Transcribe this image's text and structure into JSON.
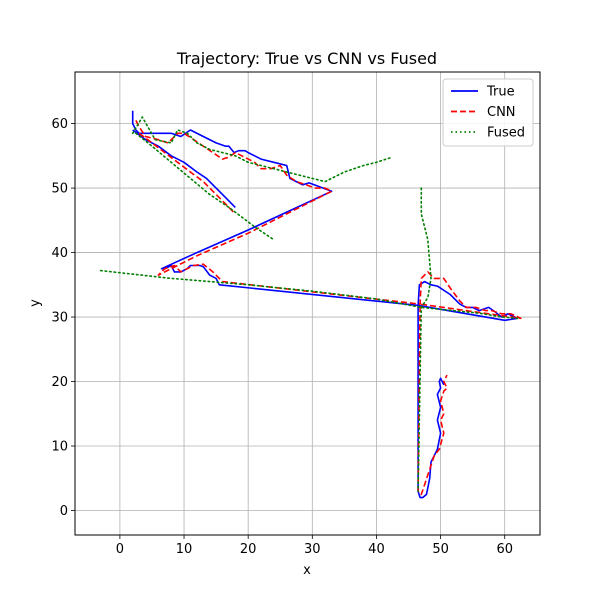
{
  "chart_data": {
    "type": "line",
    "title": "Trajectory: True vs CNN vs Fused",
    "xlabel": "x",
    "ylabel": "y",
    "xlim": [
      -7.0,
      65.5
    ],
    "ylim": [
      -3.8,
      68.0
    ],
    "xticks": [
      0,
      10,
      20,
      30,
      40,
      50,
      60
    ],
    "yticks": [
      0,
      10,
      20,
      30,
      40,
      50,
      60
    ],
    "grid": true,
    "legend_position": "top-right",
    "series": [
      {
        "name": "True",
        "color": "#0000ff",
        "style": "solid",
        "x": [
          2.0,
          2.0,
          2.5,
          3.0,
          5.0,
          8.0,
          9.5,
          11.0,
          13.0,
          15.0,
          16.5,
          17.0,
          17.8,
          18.5,
          19.5,
          20.0,
          21.0,
          22.0,
          24.0,
          26.0,
          26.5,
          27.5,
          28.5,
          29.5,
          33.0,
          20.0,
          12.0,
          6.5,
          7.0,
          8.0,
          8.5,
          9.5,
          10.5,
          11.0,
          12.5,
          13.0,
          14.0,
          15.0,
          15.5,
          46.5,
          46.7,
          47.5,
          48.5,
          49.5,
          51.5,
          53.0,
          54.0,
          55.0,
          56.0,
          57.5,
          58.5,
          59.5,
          60.5,
          62.0,
          60.0,
          46.5,
          46.5,
          46.8,
          47.2,
          47.8,
          48.3,
          48.5,
          49.0,
          49.5,
          50.0,
          49.5,
          50.0,
          49.5,
          50.0,
          49.8,
          50.0,
          50.5
        ],
        "y": [
          62.0,
          60.0,
          59.0,
          58.5,
          58.5,
          58.5,
          58.0,
          59.0,
          58.0,
          57.0,
          56.5,
          56.5,
          55.5,
          55.8,
          55.8,
          55.5,
          55.0,
          54.5,
          54.0,
          53.5,
          51.5,
          51.0,
          50.5,
          50.8,
          49.5,
          43.5,
          40.0,
          37.5,
          37.5,
          38.0,
          37.0,
          37.0,
          37.5,
          38.0,
          38.0,
          37.8,
          36.5,
          36.0,
          35.0,
          31.8,
          35.0,
          35.5,
          35.0,
          34.8,
          33.5,
          32.0,
          31.5,
          31.5,
          31.0,
          31.5,
          30.8,
          30.0,
          30.5,
          29.8,
          29.5,
          31.8,
          3.0,
          2.0,
          2.0,
          2.5,
          5.0,
          7.5,
          8.5,
          9.5,
          12.0,
          14.0,
          16.0,
          18.0,
          19.0,
          20.0,
          20.5,
          19.5
        ]
      },
      {
        "name": "True",
        "color": "#0000ff",
        "style": "solid",
        "x": [
          2.0,
          4.0,
          6.0,
          8.0,
          10.0,
          12.0,
          13.5,
          15.0,
          16.5,
          18.0
        ],
        "y": [
          59.0,
          57.5,
          56.5,
          55.0,
          54.0,
          52.5,
          51.5,
          50.0,
          48.5,
          47.0
        ]
      },
      {
        "name": "CNN",
        "color": "#ff0000",
        "style": "dashed",
        "x": [
          2.5,
          3.0,
          4.0,
          6.0,
          7.5,
          9.0,
          10.0,
          11.5,
          13.0,
          14.5,
          16.0,
          17.0,
          18.0,
          19.0,
          20.0,
          21.0,
          22.0,
          23.5,
          25.0,
          26.0,
          27.5,
          29.0,
          30.5,
          32.0,
          33.0,
          28.0,
          20.0,
          12.0,
          6.0,
          7.0,
          8.5,
          9.5,
          10.5,
          11.5,
          13.0,
          14.5,
          15.5,
          16.0,
          46.8,
          47.0,
          47.5,
          48.0,
          49.0,
          50.5,
          51.5,
          53.0,
          54.0,
          55.5,
          57.0,
          58.0,
          59.5,
          61.0,
          62.5,
          46.8,
          46.5,
          47.0,
          47.5,
          48.0,
          48.5,
          49.0,
          49.8,
          50.5,
          50.0,
          50.5,
          50.0,
          50.5,
          51.0,
          50.5,
          51.0
        ],
        "y": [
          60.5,
          59.5,
          58.0,
          57.5,
          57.0,
          58.5,
          58.5,
          57.5,
          56.5,
          55.5,
          54.5,
          54.8,
          55.5,
          55.0,
          54.5,
          54.0,
          53.0,
          53.0,
          53.5,
          52.0,
          51.0,
          50.5,
          50.0,
          50.0,
          49.5,
          47.0,
          43.0,
          39.5,
          36.5,
          37.5,
          38.0,
          37.0,
          37.5,
          38.0,
          38.2,
          37.0,
          36.0,
          35.5,
          32.0,
          36.0,
          36.5,
          37.0,
          36.0,
          36.0,
          34.5,
          32.5,
          31.5,
          31.5,
          31.0,
          31.0,
          30.5,
          30.5,
          29.8,
          32.0,
          3.0,
          2.5,
          4.0,
          5.5,
          7.0,
          8.5,
          9.5,
          12.0,
          14.0,
          15.0,
          17.0,
          18.5,
          19.0,
          20.0,
          21.0
        ]
      },
      {
        "name": "CNN",
        "color": "#ff0000",
        "style": "dashed",
        "x": [
          3.0,
          5.0,
          7.0,
          9.0,
          11.0,
          13.0,
          15.0,
          17.0,
          18.0
        ],
        "y": [
          58.5,
          57.0,
          55.5,
          54.0,
          52.5,
          51.0,
          49.0,
          47.0,
          46.0
        ]
      },
      {
        "name": "Fused",
        "color": "#008000",
        "style": "dotted",
        "x": [
          2.0,
          3.5,
          5.5,
          8.0,
          9.0,
          10.5,
          12.0,
          14.0,
          16.0,
          18.0,
          20.0,
          22.0,
          24.0,
          26.0,
          28.0,
          30.0,
          32.0,
          35.0,
          38.0,
          40.0,
          42.5
        ],
        "y": [
          58.5,
          61.0,
          57.5,
          57.0,
          59.0,
          58.5,
          57.0,
          56.0,
          55.5,
          55.0,
          54.0,
          53.5,
          53.0,
          52.5,
          52.0,
          51.5,
          51.0,
          52.5,
          53.5,
          54.0,
          54.8
        ]
      },
      {
        "name": "Fused",
        "color": "#008000",
        "style": "dotted",
        "x": [
          2.5,
          5.0,
          8.0,
          11.0,
          14.0,
          17.0,
          19.0,
          21.0,
          24.0
        ],
        "y": [
          58.5,
          56.5,
          54.0,
          51.5,
          49.0,
          47.0,
          45.5,
          44.0,
          42.0
        ]
      },
      {
        "name": "Fused",
        "color": "#008000",
        "style": "dotted",
        "x": [
          -3.0,
          8.0,
          14.0,
          20.0,
          30.0,
          40.0,
          47.0,
          52.0,
          56.0,
          59.5,
          62.0
        ],
        "y": [
          37.2,
          36.0,
          35.5,
          35.0,
          34.0,
          32.8,
          31.5,
          31.0,
          30.6,
          30.0,
          29.8
        ]
      },
      {
        "name": "Fused",
        "color": "#008000",
        "style": "dotted",
        "x": [
          47.0,
          47.0,
          48.0,
          48.5,
          48.0,
          47.0,
          46.5
        ],
        "y": [
          50.0,
          46.0,
          42.0,
          36.0,
          33.0,
          31.5,
          3.0
        ]
      }
    ]
  },
  "legend": [
    {
      "label": "True",
      "color": "#0000ff",
      "style": "solid"
    },
    {
      "label": "CNN",
      "color": "#ff0000",
      "style": "dashed"
    },
    {
      "label": "Fused",
      "color": "#008000",
      "style": "dotted"
    }
  ]
}
